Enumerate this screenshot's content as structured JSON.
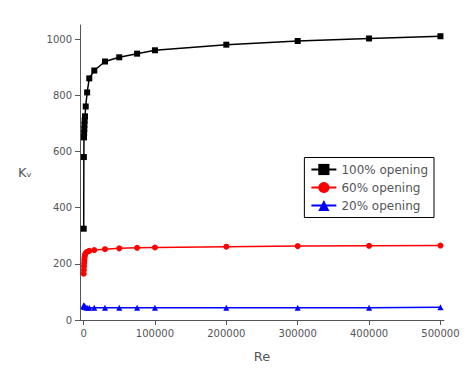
{
  "chart_data": {
    "type": "line",
    "xlabel": "Re",
    "ylabel": "Kᵥ",
    "xlim": [
      -5000,
      505000
    ],
    "ylim": [
      0,
      1050
    ],
    "xticks": [
      0,
      100000,
      200000,
      300000,
      400000,
      500000
    ],
    "yticks": [
      0,
      200,
      400,
      600,
      800,
      1000
    ],
    "grid": false,
    "legend": "center right",
    "x": [
      200,
      400,
      600,
      800,
      1000,
      1200,
      1500,
      2000,
      3000,
      5000,
      8000,
      15000,
      30000,
      50000,
      75000,
      100000,
      200000,
      300000,
      400000,
      500000
    ],
    "series": [
      {
        "name": "100% opening",
        "color": "#000000",
        "marker": "square",
        "values": [
          325,
          580,
          650,
          665,
          680,
          695,
          710,
          725,
          760,
          810,
          860,
          888,
          920,
          935,
          948,
          960,
          980,
          993,
          1002,
          1010
        ]
      },
      {
        "name": "60% opening",
        "color": "#ff0000",
        "marker": "circle",
        "values": [
          165,
          178,
          190,
          200,
          210,
          218,
          225,
          232,
          238,
          243,
          246,
          249,
          252,
          255,
          257,
          258,
          261,
          263,
          264,
          265
        ]
      },
      {
        "name": "20% opening",
        "color": "#0000ff",
        "marker": "triangle",
        "values": [
          52,
          51,
          50,
          49,
          48,
          47,
          46,
          46,
          45,
          44,
          44,
          44,
          44,
          44,
          44,
          44,
          44,
          44,
          44,
          45
        ]
      }
    ]
  }
}
